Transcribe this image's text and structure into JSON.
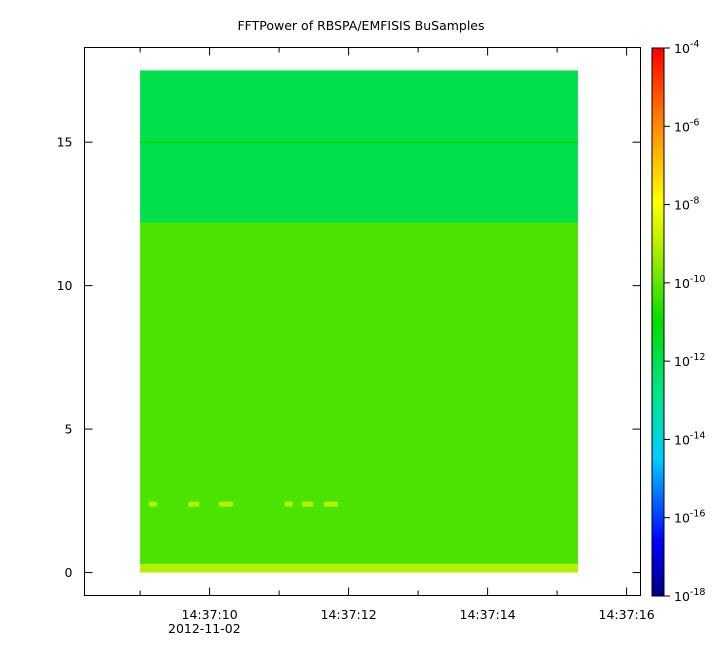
{
  "chart_data": {
    "type": "heatmap",
    "title": "FFTPower of RBSPA/EMFISIS  BuSamples",
    "xlabel": "",
    "ylabel": "",
    "x_axis": {
      "kind": "time",
      "range": [
        "14:37:08.2",
        "14:37:16.2"
      ],
      "ticks": [
        "14:37:10",
        "14:37:12",
        "14:37:14",
        "14:37:16"
      ],
      "date_label": "2012-11-02"
    },
    "y_axis": {
      "range": [
        -0.8,
        18.3
      ],
      "ticks": [
        0,
        5,
        10,
        15
      ]
    },
    "data_extent": {
      "x": [
        "14:37:09.0",
        "14:37:15.3"
      ],
      "y": [
        0,
        17.5
      ]
    },
    "colorbar": {
      "scale": "log",
      "range": [
        1e-18,
        0.0001
      ],
      "colormap": "rainbow",
      "ticks": [
        {
          "base": "10",
          "exp": "-4",
          "value": 0.0001
        },
        {
          "base": "10",
          "exp": "-6",
          "value": 1e-06
        },
        {
          "base": "10",
          "exp": "-8",
          "value": 1e-08
        },
        {
          "base": "10",
          "exp": "-10",
          "value": 1e-10
        },
        {
          "base": "10",
          "exp": "-12",
          "value": 1e-12
        },
        {
          "base": "10",
          "exp": "-14",
          "value": 1e-14
        },
        {
          "base": "10",
          "exp": "-16",
          "value": 1e-16
        },
        {
          "base": "10",
          "exp": "-18",
          "value": 1e-18
        }
      ]
    },
    "bands": [
      {
        "y": [
          0,
          0.3
        ],
        "log10_power": -9.0
      },
      {
        "y": [
          0.3,
          12.2
        ],
        "log10_power": -10.2
      },
      {
        "y": [
          12.2,
          17.5
        ],
        "log10_power": -12.0
      }
    ],
    "features": [
      {
        "kind": "line",
        "y": 15.0,
        "log10_power": -11.0
      },
      {
        "kind": "patches",
        "y": 2.4,
        "log10_power": -9.0
      }
    ]
  }
}
